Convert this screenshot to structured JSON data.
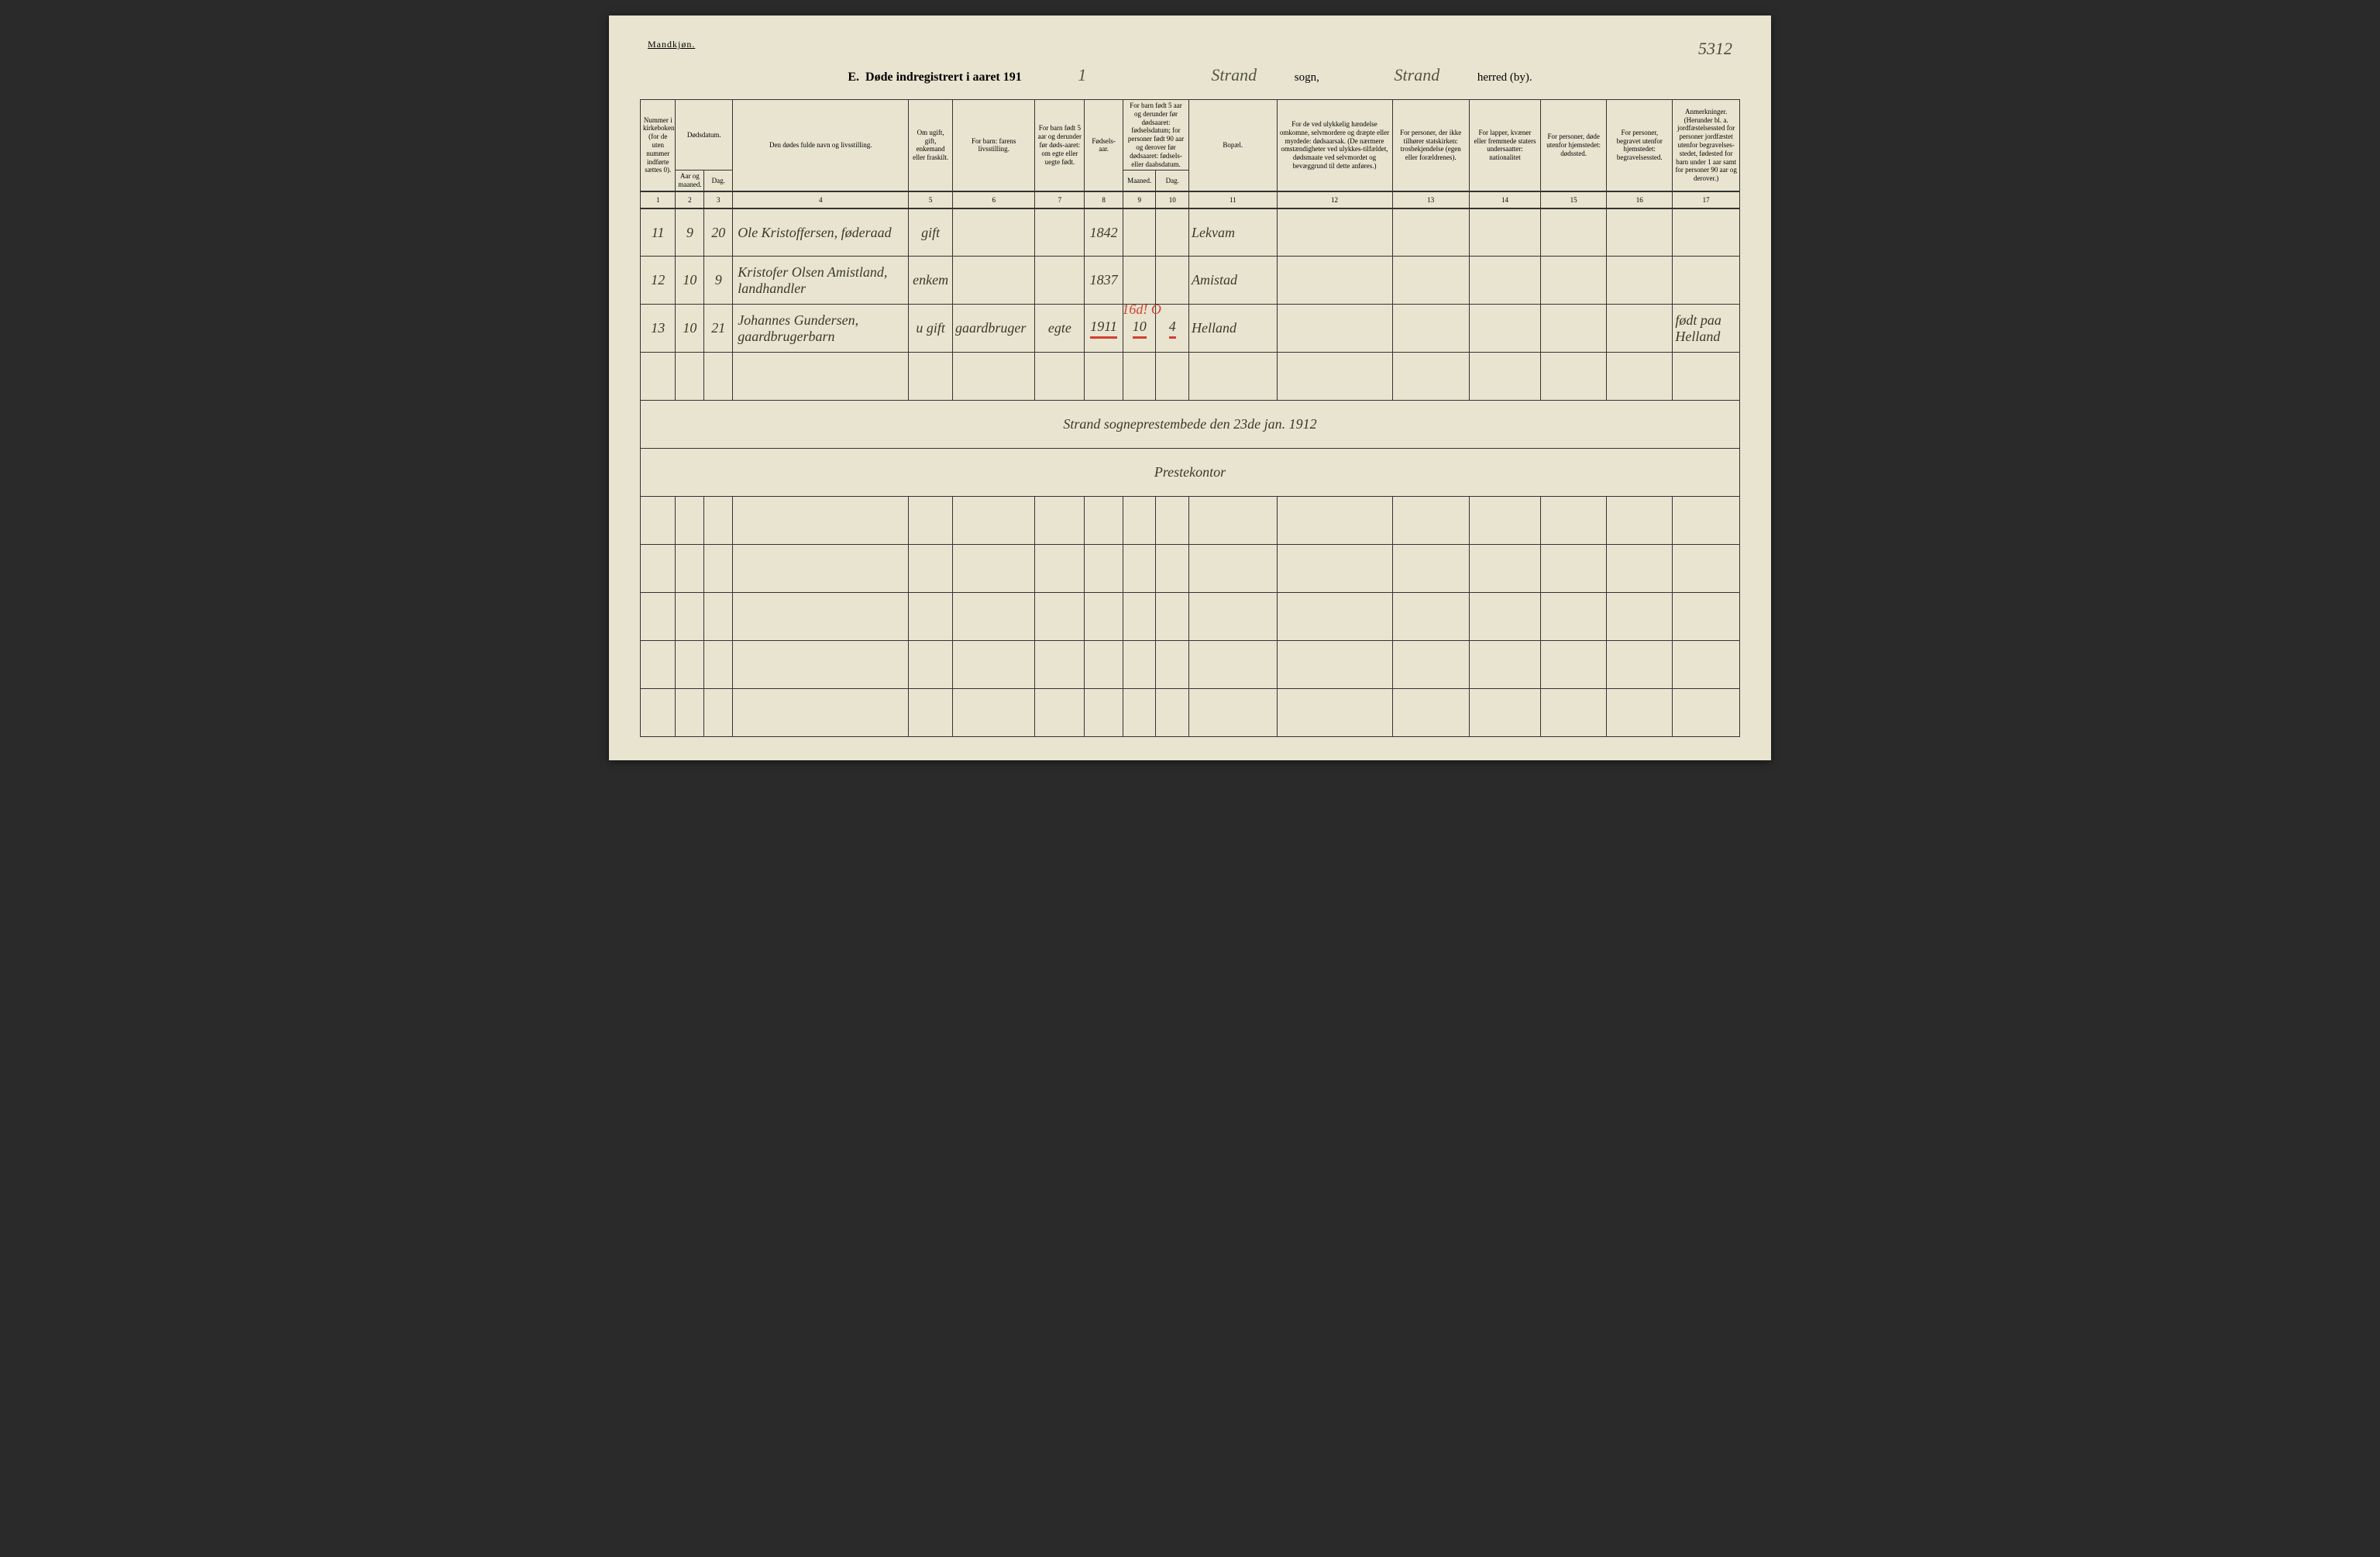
{
  "gender_label": "Mandkjøn.",
  "page_number": "5312",
  "title": {
    "prefix": "E.",
    "main": "Døde indregistrert i aaret 191",
    "year_digit": "1",
    "sogn_value": "Strand",
    "sogn_label": "sogn,",
    "herred_value": "Strand",
    "herred_label": "herred (by)."
  },
  "headers": {
    "c1": "Nummer i kirkeboken (for de uten nummer indførte sættes 0).",
    "c2_top": "Dødsdatum.",
    "c2_aar": "Aar og maaned.",
    "c2_dag": "Dag.",
    "c4": "Den dødes fulde navn og livsstilling.",
    "c5": "Om ugift, gift, enkemand eller fraskilt.",
    "c6": "For barn: farens livsstilling.",
    "c7": "For barn født 5 aar og derunder før døds-aaret: om egte eller uegte født.",
    "c8": "Fødsels-aar.",
    "c9_top": "For barn født 5 aar og derunder før dødsaaret: fødselsdatum; for personer født 90 aar og derover før dødsaaret: fødsels- eller daabsdatum.",
    "c9_m": "Maaned.",
    "c9_d": "Dag.",
    "c11": "Bopæl.",
    "c12": "For de ved ulykkelig hændelse omkomne, selvmordere og dræpte eller myrdede: dødsaarsak. (De nærmere omstændigheter ved ulykkes-tilfældet, dødsmaate ved selvmordet og bevæggrund til dette anføres.)",
    "c13": "For personer, der ikke tilhører statskirken: trosbekjendelse (egen eller forældrenes).",
    "c14": "For lapper, kvæner eller fremmede staters undersaatter: nationalitet",
    "c15": "For personer, døde utenfor hjemstedet: dødssted.",
    "c16": "For personer, begravet utenfor hjemstedet: begravelsessted.",
    "c17": "Anmerkninger. (Herunder bl. a. jordfæstelsessted for personer jordfæstet utenfor begravelses-stedet, fødested for barn under 1 aar samt for personer 90 aar og derover.)"
  },
  "colnums": [
    "1",
    "2",
    "3",
    "4",
    "5",
    "6",
    "7",
    "8",
    "9",
    "10",
    "11",
    "12",
    "13",
    "14",
    "15",
    "16",
    "17"
  ],
  "rows": [
    {
      "num": "11",
      "aar": "9",
      "dag": "20",
      "navn": "Ole Kristoffersen, føderaad",
      "stand": "gift",
      "faren": "",
      "egte": "",
      "faar": "1842",
      "fm": "",
      "fd": "",
      "bopel": "Lekvam",
      "c12": "",
      "c13": "",
      "c14": "",
      "c15": "",
      "c16": "",
      "c17": ""
    },
    {
      "num": "12",
      "aar": "10",
      "dag": "9",
      "navn": "Kristofer Olsen Amistland, landhandler",
      "stand": "enkem",
      "faren": "",
      "egte": "",
      "faar": "1837",
      "fm": "",
      "fd": "",
      "bopel": "Amistad",
      "c12": "",
      "c13": "",
      "c14": "",
      "c15": "",
      "c16": "",
      "c17": ""
    },
    {
      "num": "13",
      "aar": "10",
      "dag": "21",
      "navn": "Johannes Gundersen, gaardbrugerbarn",
      "stand": "u gift",
      "faren": "gaardbruger",
      "egte": "egte",
      "faar": "1911",
      "fm": "10",
      "fd": "4",
      "bopel": "Helland",
      "c12": "",
      "c13": "",
      "c14": "",
      "c15": "",
      "c16": "",
      "c17": "født paa Helland"
    }
  ],
  "red_annotations": {
    "over_r3": "16d! O"
  },
  "certification": {
    "line1": "Strand sogneprestembede den 23de jan. 1912",
    "line2": "Prestekontor"
  },
  "col_widths_pct": [
    3.2,
    2.6,
    2.6,
    16.0,
    4.0,
    7.5,
    4.5,
    3.5,
    3.0,
    3.0,
    8.0,
    10.5,
    7.0,
    6.5,
    6.0,
    6.0,
    6.1
  ],
  "colors": {
    "page_bg": "#e8e4d0",
    "outer_bg": "#2a2a2a",
    "ink": "#3a3a2a",
    "rule": "#333333",
    "red": "#d04030"
  }
}
